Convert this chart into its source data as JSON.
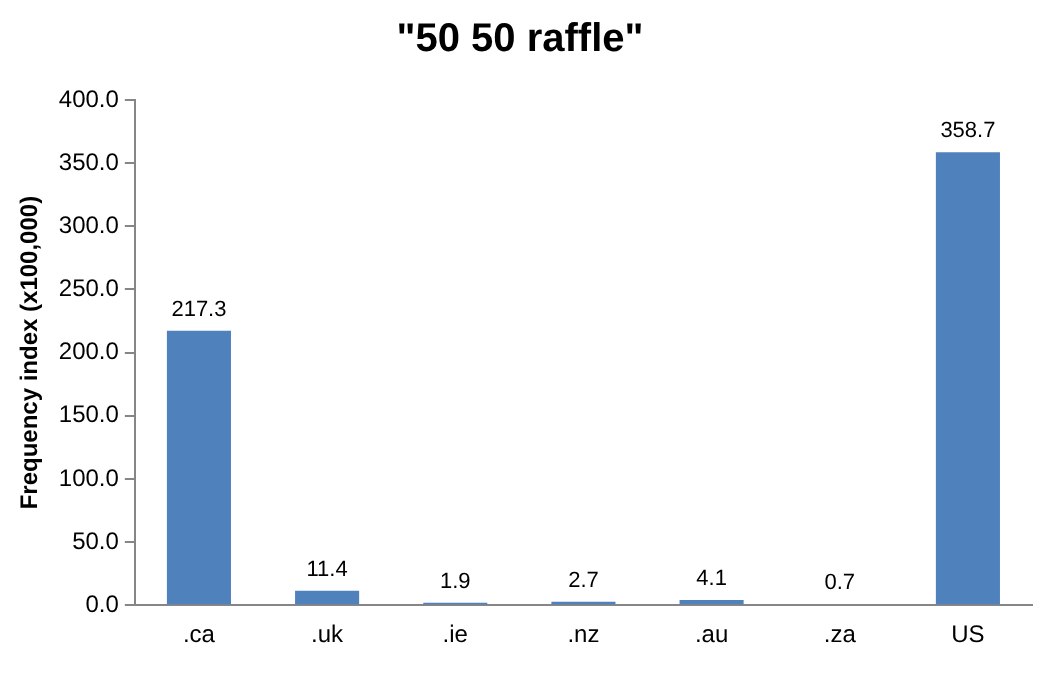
{
  "chart_data": {
    "type": "bar",
    "title": "\"50 50 raffle\"",
    "ylabel": "Frequency index (x100,000)",
    "categories": [
      ".ca",
      ".uk",
      ".ie",
      ".nz",
      ".au",
      ".za",
      "US"
    ],
    "values": [
      217.3,
      11.4,
      1.9,
      2.7,
      4.1,
      0.7,
      358.7
    ],
    "color": "#4f81bd",
    "ylim": [
      0,
      400
    ],
    "yticks": [
      {
        "value": 0,
        "label": "0.0"
      },
      {
        "value": 50,
        "label": "50.0"
      },
      {
        "value": 100,
        "label": "100.0"
      },
      {
        "value": 150,
        "label": "150.0"
      },
      {
        "value": 200,
        "label": "200.0"
      },
      {
        "value": 250,
        "label": "250.0"
      },
      {
        "value": 300,
        "label": "300.0"
      },
      {
        "value": 350,
        "label": "350.0"
      },
      {
        "value": 400,
        "label": "400.0"
      }
    ],
    "grid": false,
    "data_labels": true
  }
}
